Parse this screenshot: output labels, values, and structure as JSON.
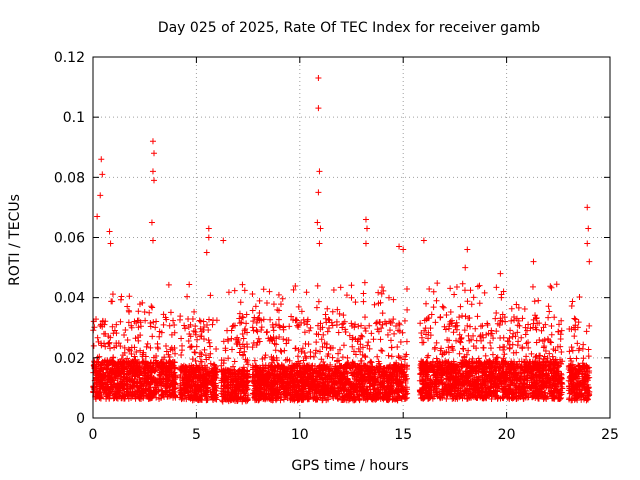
{
  "chart_data": {
    "type": "scatter",
    "title": "Day 025 of 2025, Rate Of TEC Index for receiver gamb",
    "xlabel": "GPS time / hours",
    "ylabel": "ROTI / TECUs",
    "xlim": [
      0,
      25
    ],
    "ylim": [
      0,
      0.12
    ],
    "xticks": [
      0,
      5,
      10,
      15,
      20,
      25
    ],
    "xtick_labels": [
      "0",
      "5",
      "10",
      "15",
      "20",
      "25"
    ],
    "yticks": [
      0,
      0.02,
      0.04,
      0.06,
      0.08,
      0.1,
      0.12
    ],
    "ytick_labels": [
      "0",
      "0.02",
      "0.04",
      "0.06",
      "0.08",
      "0.1",
      "0.12"
    ],
    "grid": true,
    "marker": "plus",
    "color": "#ff0000",
    "series": [
      {
        "name": "ROTI",
        "segments": [
          {
            "start": 0.0,
            "end": 4.0,
            "base": 0.014
          },
          {
            "start": 4.2,
            "end": 6.0,
            "base": 0.013
          },
          {
            "start": 6.2,
            "end": 7.5,
            "base": 0.012
          },
          {
            "start": 7.7,
            "end": 15.2,
            "base": 0.013
          },
          {
            "start": 15.8,
            "end": 22.7,
            "base": 0.014
          },
          {
            "start": 23.0,
            "end": 24.0,
            "base": 0.013
          }
        ],
        "notable_points": [
          {
            "x": 0.4,
            "y": 0.086
          },
          {
            "x": 0.45,
            "y": 0.081
          },
          {
            "x": 0.35,
            "y": 0.074
          },
          {
            "x": 0.2,
            "y": 0.067
          },
          {
            "x": 0.8,
            "y": 0.062
          },
          {
            "x": 0.85,
            "y": 0.058
          },
          {
            "x": 2.9,
            "y": 0.092
          },
          {
            "x": 2.95,
            "y": 0.088
          },
          {
            "x": 2.9,
            "y": 0.082
          },
          {
            "x": 2.95,
            "y": 0.079
          },
          {
            "x": 2.85,
            "y": 0.065
          },
          {
            "x": 2.9,
            "y": 0.059
          },
          {
            "x": 5.6,
            "y": 0.063
          },
          {
            "x": 5.6,
            "y": 0.06
          },
          {
            "x": 5.5,
            "y": 0.055
          },
          {
            "x": 6.3,
            "y": 0.059
          },
          {
            "x": 10.9,
            "y": 0.113
          },
          {
            "x": 10.9,
            "y": 0.103
          },
          {
            "x": 10.95,
            "y": 0.082
          },
          {
            "x": 10.9,
            "y": 0.075
          },
          {
            "x": 10.85,
            "y": 0.065
          },
          {
            "x": 11.0,
            "y": 0.063
          },
          {
            "x": 10.95,
            "y": 0.058
          },
          {
            "x": 13.2,
            "y": 0.066
          },
          {
            "x": 13.25,
            "y": 0.063
          },
          {
            "x": 13.2,
            "y": 0.058
          },
          {
            "x": 14.8,
            "y": 0.057
          },
          {
            "x": 15.0,
            "y": 0.056
          },
          {
            "x": 16.0,
            "y": 0.059
          },
          {
            "x": 18.1,
            "y": 0.056
          },
          {
            "x": 18.0,
            "y": 0.05
          },
          {
            "x": 19.7,
            "y": 0.048
          },
          {
            "x": 21.3,
            "y": 0.052
          },
          {
            "x": 23.9,
            "y": 0.07
          },
          {
            "x": 23.95,
            "y": 0.063
          },
          {
            "x": 23.9,
            "y": 0.058
          },
          {
            "x": 24.0,
            "y": 0.052
          }
        ]
      }
    ]
  }
}
